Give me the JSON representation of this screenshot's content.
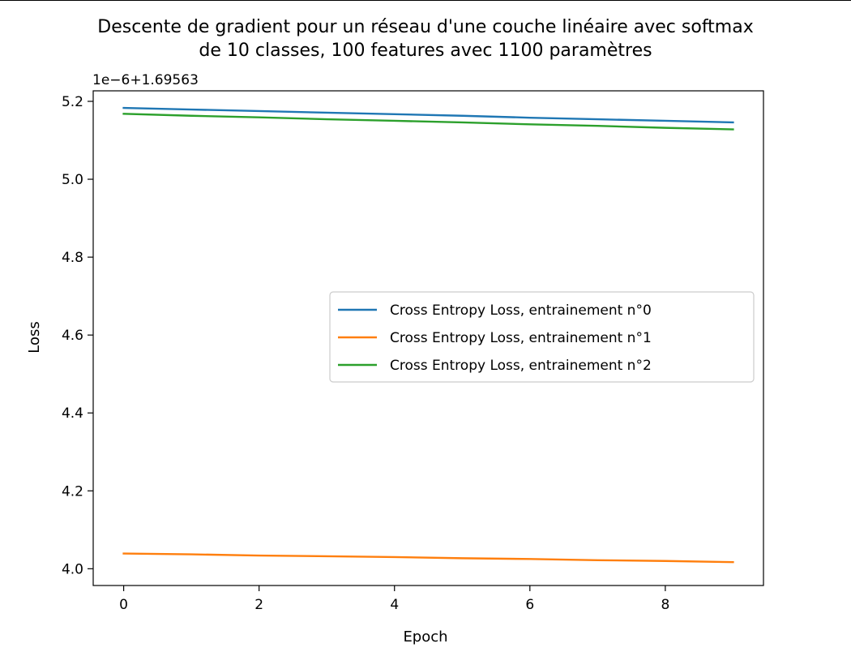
{
  "chart_data": {
    "type": "line",
    "title_lines": [
      "Descente de gradient pour un réseau d'une couche linéaire avec softmax",
      "de 10 classes, 100 features avec 1100 paramètres"
    ],
    "xlabel": "Epoch",
    "ylabel": "Loss",
    "offset_label": "1e−6+1.69563",
    "xlim": [
      -0.45,
      9.45
    ],
    "ylim": [
      3.957,
      5.227
    ],
    "xticks": [
      0,
      2,
      4,
      6,
      8
    ],
    "xtick_labels": [
      "0",
      "2",
      "4",
      "6",
      "8"
    ],
    "yticks": [
      4.0,
      4.2,
      4.4,
      4.6,
      4.8,
      5.0,
      5.2
    ],
    "ytick_labels": [
      "4.0",
      "4.2",
      "4.4",
      "4.6",
      "4.8",
      "5.0",
      "5.2"
    ],
    "grid": false,
    "legend_position": "center-right",
    "x": [
      0,
      1,
      2,
      3,
      4,
      5,
      6,
      7,
      8,
      9
    ],
    "series": [
      {
        "name": "Cross Entropy Loss, entrainement n°0",
        "color": "#1f77b4",
        "values": [
          5.183,
          5.179,
          5.175,
          5.171,
          5.167,
          5.163,
          5.158,
          5.154,
          5.15,
          5.146
        ]
      },
      {
        "name": "Cross Entropy Loss, entrainement n°1",
        "color": "#ff7f0e",
        "values": [
          4.039,
          4.037,
          4.034,
          4.032,
          4.03,
          4.027,
          4.025,
          4.022,
          4.02,
          4.017
        ]
      },
      {
        "name": "Cross Entropy Loss, entrainement n°2",
        "color": "#2ca02c",
        "values": [
          5.168,
          5.163,
          5.159,
          5.154,
          5.15,
          5.146,
          5.141,
          5.137,
          5.132,
          5.128
        ]
      }
    ]
  }
}
